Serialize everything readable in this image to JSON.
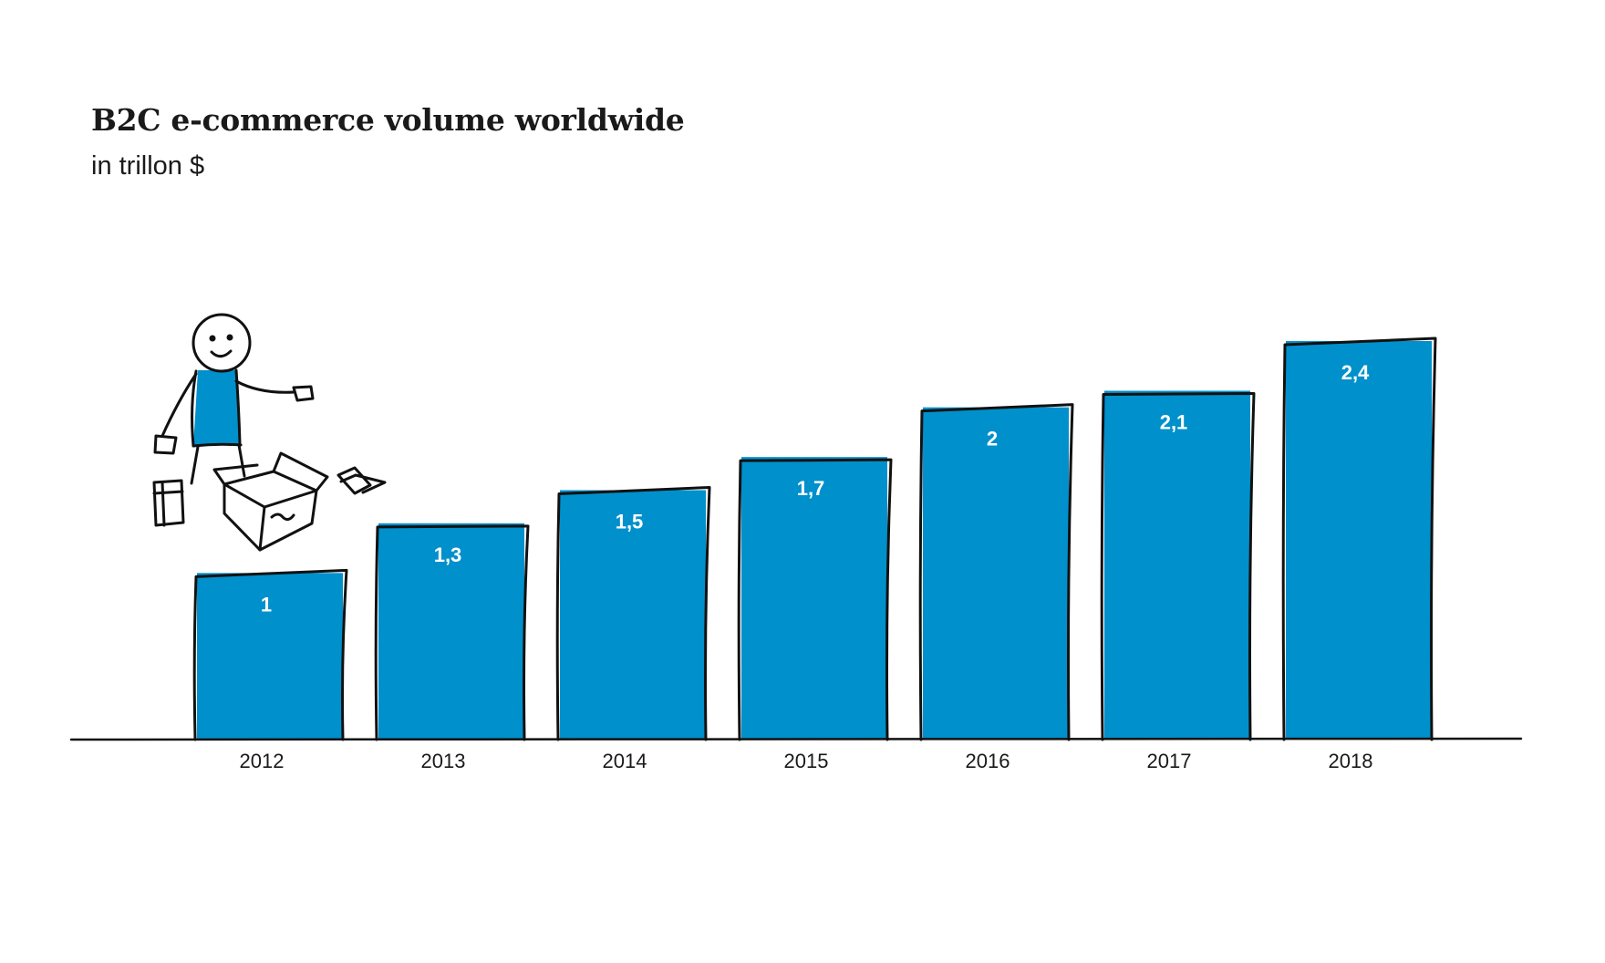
{
  "colors": {
    "bar": "#0090cc",
    "outline": "#111111",
    "text": "#1a1a1a",
    "label": "#ffffff"
  },
  "illustration": {
    "icon": "stick-figure-unpacking-box-icon"
  },
  "chart_data": {
    "type": "bar",
    "title": "B2C e-commerce volume worldwide",
    "subtitle": "in trillon $",
    "categories": [
      "2012",
      "2013",
      "2014",
      "2015",
      "2016",
      "2017",
      "2018"
    ],
    "values": [
      1,
      1.3,
      1.5,
      1.7,
      2,
      2.1,
      2.4
    ],
    "value_labels": [
      "1",
      "1,3",
      "1,5",
      "1,7",
      "2",
      "2,1",
      "2,4"
    ],
    "ylim": [
      0,
      2.4
    ],
    "grid": false,
    "legend": "none"
  }
}
